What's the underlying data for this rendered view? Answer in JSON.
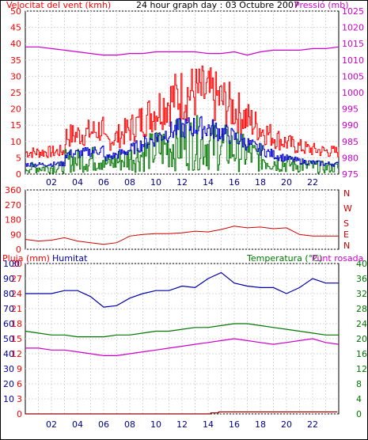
{
  "header": {
    "wind_title": "Velocitat del vent (kmh)",
    "graph_title": "24 hour graph day : 03 Octubre 2007",
    "pressure_title": "Pressió (mb)"
  },
  "labels": {
    "rain": "Pluja (mm)",
    "humidity": "Humitat",
    "temperature": "Temperatura (°C)",
    "dewpoint": "Punt rosada",
    "compass": [
      "N",
      "W",
      "S",
      "E",
      "N"
    ]
  },
  "colors": {
    "wind_gust": "#ff0000",
    "wind_avg": "#0000cc",
    "wind_low": "#007700",
    "pressure": "#cc00cc",
    "direction": "#cc0000",
    "humidity": "#0000aa",
    "temperature": "#007700",
    "dewpoint": "#cc00cc",
    "rain": "#990000",
    "axis_left": "#ff0000",
    "axis_right": "#cc00cc",
    "axis_blue": "#0000aa",
    "axis_green": "#007700"
  },
  "chart_data": [
    {
      "type": "line",
      "panel": "wind",
      "x_ticks": [
        "02",
        "04",
        "06",
        "08",
        "10",
        "12",
        "14",
        "16",
        "18",
        "20",
        "22"
      ],
      "y_left_ticks": [
        0,
        5,
        10,
        15,
        20,
        25,
        30,
        35,
        40,
        45,
        50
      ],
      "y_right_ticks": [
        975,
        980,
        985,
        990,
        995,
        1000,
        1005,
        1010,
        1015,
        1020,
        1025
      ],
      "ylim_left": [
        0,
        50
      ],
      "ylim_right": [
        975,
        1025
      ],
      "pressure_points": [
        [
          0,
          1014
        ],
        [
          1,
          1014
        ],
        [
          2,
          1013.5
        ],
        [
          3,
          1013
        ],
        [
          4,
          1012.5
        ],
        [
          5,
          1012
        ],
        [
          6,
          1011.5
        ],
        [
          7,
          1011.5
        ],
        [
          8,
          1012
        ],
        [
          9,
          1012
        ],
        [
          10,
          1012.5
        ],
        [
          11,
          1012.5
        ],
        [
          12,
          1012.5
        ],
        [
          13,
          1012.5
        ],
        [
          14,
          1012
        ],
        [
          15,
          1012
        ],
        [
          16,
          1012.5
        ],
        [
          17,
          1011.5
        ],
        [
          18,
          1012.5
        ],
        [
          19,
          1013
        ],
        [
          20,
          1013
        ],
        [
          21,
          1013
        ],
        [
          22,
          1013.5
        ],
        [
          23,
          1013.5
        ],
        [
          24,
          1014
        ]
      ]
    },
    {
      "type": "line",
      "panel": "direction",
      "y_ticks": [
        0,
        90,
        180,
        270,
        360
      ],
      "ylim": [
        0,
        360
      ],
      "points": [
        [
          0,
          60
        ],
        [
          1,
          50
        ],
        [
          2,
          55
        ],
        [
          3,
          70
        ],
        [
          4,
          50
        ],
        [
          5,
          40
        ],
        [
          6,
          30
        ],
        [
          7,
          40
        ],
        [
          8,
          80
        ],
        [
          9,
          90
        ],
        [
          10,
          95
        ],
        [
          11,
          95
        ],
        [
          12,
          100
        ],
        [
          13,
          110
        ],
        [
          14,
          105
        ],
        [
          15,
          120
        ],
        [
          16,
          140
        ],
        [
          17,
          130
        ],
        [
          18,
          135
        ],
        [
          19,
          125
        ],
        [
          20,
          130
        ],
        [
          21,
          90
        ],
        [
          22,
          80
        ],
        [
          23,
          80
        ],
        [
          24,
          80
        ]
      ]
    },
    {
      "type": "line",
      "panel": "climate",
      "y_left1_ticks": [
        0,
        3,
        6,
        9,
        12,
        15,
        18,
        21,
        24,
        27,
        30
      ],
      "y_left2_ticks": [
        10,
        20,
        30,
        40,
        50,
        60,
        70,
        80,
        90,
        100
      ],
      "y_right_ticks": [
        0,
        4,
        8,
        12,
        16,
        20,
        24,
        28,
        32,
        36,
        40
      ],
      "series": [
        {
          "name": "Humitat",
          "axis": "left2",
          "points": [
            [
              0,
              80
            ],
            [
              1,
              80
            ],
            [
              2,
              80
            ],
            [
              3,
              82
            ],
            [
              4,
              82
            ],
            [
              5,
              78
            ],
            [
              6,
              71
            ],
            [
              7,
              72
            ],
            [
              8,
              77
            ],
            [
              9,
              80
            ],
            [
              10,
              82
            ],
            [
              11,
              82
            ],
            [
              12,
              85
            ],
            [
              13,
              84
            ],
            [
              14,
              90
            ],
            [
              15,
              94
            ],
            [
              16,
              87
            ],
            [
              17,
              85
            ],
            [
              18,
              84
            ],
            [
              19,
              84
            ],
            [
              20,
              80
            ],
            [
              21,
              84
            ],
            [
              22,
              90
            ],
            [
              23,
              87
            ],
            [
              24,
              87
            ]
          ]
        },
        {
          "name": "Temperatura (°C)",
          "axis": "right",
          "points": [
            [
              0,
              22
            ],
            [
              1,
              21.5
            ],
            [
              2,
              21
            ],
            [
              3,
              21
            ],
            [
              4,
              20.5
            ],
            [
              5,
              20.5
            ],
            [
              6,
              20.5
            ],
            [
              7,
              21
            ],
            [
              8,
              21
            ],
            [
              9,
              21.5
            ],
            [
              10,
              22
            ],
            [
              11,
              22
            ],
            [
              12,
              22.5
            ],
            [
              13,
              23
            ],
            [
              14,
              23
            ],
            [
              15,
              23.5
            ],
            [
              16,
              24
            ],
            [
              17,
              24
            ],
            [
              18,
              23.5
            ],
            [
              19,
              23
            ],
            [
              20,
              22.5
            ],
            [
              21,
              22
            ],
            [
              22,
              21.5
            ],
            [
              23,
              21
            ],
            [
              24,
              21
            ]
          ]
        },
        {
          "name": "Punt rosada",
          "axis": "right",
          "points": [
            [
              0,
              17.5
            ],
            [
              1,
              17.5
            ],
            [
              2,
              17
            ],
            [
              3,
              17
            ],
            [
              4,
              16.5
            ],
            [
              5,
              16
            ],
            [
              6,
              15.5
            ],
            [
              7,
              15.5
            ],
            [
              8,
              16
            ],
            [
              9,
              16.5
            ],
            [
              10,
              17
            ],
            [
              11,
              17.5
            ],
            [
              12,
              18
            ],
            [
              13,
              18.5
            ],
            [
              14,
              19
            ],
            [
              15,
              19.5
            ],
            [
              16,
              20
            ],
            [
              17,
              19.5
            ],
            [
              18,
              19
            ],
            [
              19,
              18.5
            ],
            [
              20,
              19
            ],
            [
              21,
              19.5
            ],
            [
              22,
              20
            ],
            [
              23,
              19
            ],
            [
              24,
              18.5
            ]
          ]
        },
        {
          "name": "Pluja (mm)",
          "axis": "left1",
          "points": [
            [
              0,
              0
            ],
            [
              14.2,
              0
            ],
            [
              14.2,
              0.2
            ],
            [
              14.8,
              0.2
            ],
            [
              14.8,
              0.4
            ],
            [
              23.9,
              0.4
            ]
          ]
        }
      ]
    }
  ]
}
